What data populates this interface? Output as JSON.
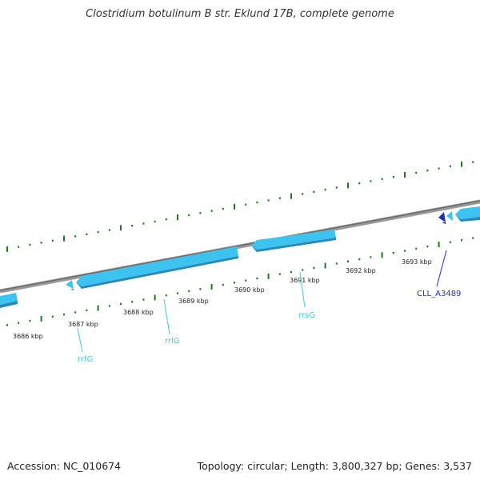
{
  "title": "Clostridium botulinum B str. Eklund 17B, complete genome",
  "footer": {
    "accession": "Accession: NC_010674",
    "summary": "Topology: circular; Length: 3,800,327 bp; Genes: 3,537"
  },
  "scale_labels": [
    "3686 kbp",
    "3687 kbp",
    "3688 kbp",
    "3689 kbp",
    "3690 kbp",
    "3691 kbp",
    "3692 kbp",
    "3693 kbp"
  ],
  "genes": [
    {
      "name": "rrfG",
      "color": "#4cc3e6"
    },
    {
      "name": "rrlG",
      "color": "#4cc3e6"
    },
    {
      "name": "rrsG",
      "color": "#4cc3e6"
    },
    {
      "name": "CLL_A3489",
      "color": "#1f2fbf"
    }
  ],
  "colors": {
    "backbone": "#808080",
    "tick": "#1e7a1e",
    "rrna_feature": "#3cc3f0",
    "rrna_feature_dark": "#2a88b8",
    "cds_feature": "#1a2ec8"
  }
}
